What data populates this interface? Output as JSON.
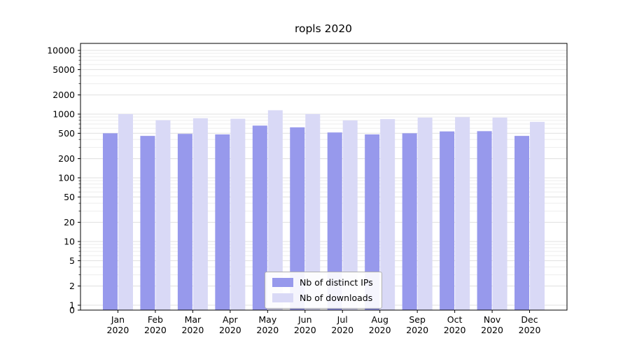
{
  "figure": {
    "background": "#ffffff"
  },
  "chart_data": {
    "type": "bar",
    "title": "ropls 2020",
    "categories": [
      "Jan",
      "Feb",
      "Mar",
      "Apr",
      "May",
      "Jun",
      "Jul",
      "Aug",
      "Sep",
      "Oct",
      "Nov",
      "Dec"
    ],
    "x_sub_label": "2020",
    "series": [
      {
        "name": "Nb of distinct IPs",
        "color": "#9799ec",
        "values": [
          500,
          455,
          490,
          480,
          660,
          620,
          515,
          480,
          500,
          535,
          540,
          455
        ]
      },
      {
        "name": "Nb of downloads",
        "color": "#d9d9f6",
        "values": [
          1000,
          800,
          860,
          845,
          1150,
          1000,
          795,
          835,
          880,
          895,
          880,
          755
        ]
      }
    ],
    "yscale": "symlog",
    "y_ticks": [
      0,
      1,
      2,
      5,
      10,
      20,
      50,
      100,
      200,
      500,
      1000,
      2000,
      5000,
      10000
    ],
    "ylim": [
      0,
      13000
    ],
    "grid": true,
    "legend_position": "lower center",
    "colors": {
      "grid_major": "#e2e2e2",
      "grid_minor": "#ededed",
      "axis": "#000000"
    }
  }
}
